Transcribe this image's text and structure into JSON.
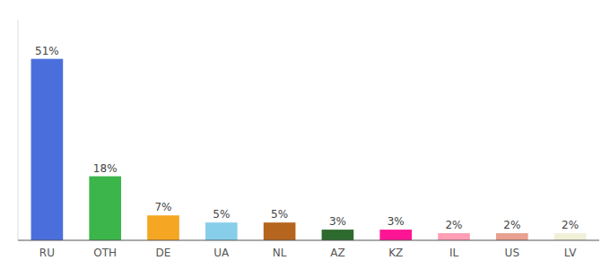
{
  "chart_data": {
    "type": "bar",
    "categories": [
      "RU",
      "OTH",
      "DE",
      "UA",
      "NL",
      "AZ",
      "KZ",
      "IL",
      "US",
      "LV"
    ],
    "values": [
      51,
      18,
      7,
      5,
      5,
      3,
      3,
      2,
      2,
      2
    ],
    "value_labels": [
      "51%",
      "18%",
      "7%",
      "5%",
      "5%",
      "3%",
      "3%",
      "2%",
      "2%",
      "2%"
    ],
    "colors": [
      "#4a6fdc",
      "#3cb54a",
      "#f5a623",
      "#87ceeb",
      "#b5651d",
      "#2d6a2d",
      "#ff1493",
      "#ff9eb5",
      "#e8a090",
      "#f0f0d8"
    ],
    "ylim": [
      0,
      62
    ],
    "data_labels": true,
    "tick_labels": "x",
    "grid": false
  }
}
